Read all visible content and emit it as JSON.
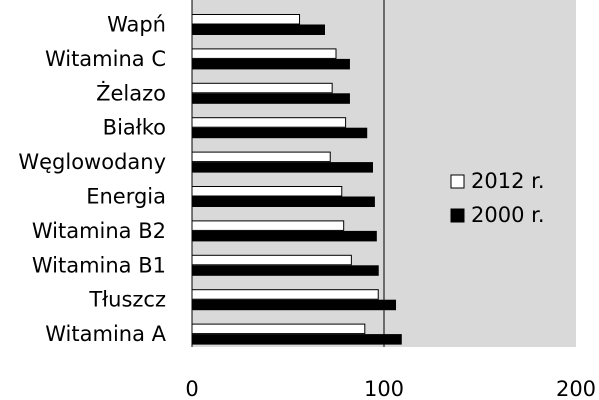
{
  "chart_data": {
    "type": "bar",
    "orientation": "horizontal",
    "categories": [
      "Wapń",
      "Witamina C",
      "Żelazo",
      "Białko",
      "Węglowodany",
      "Energia",
      "Witamina B2",
      "Witamina B1",
      "Tłuszcz",
      "Witamina A"
    ],
    "series": [
      {
        "name": "2012 r.",
        "color": "#ffffff",
        "values": [
          56,
          75,
          73,
          80,
          72,
          78,
          79,
          83,
          97,
          90
        ]
      },
      {
        "name": "2000 r.",
        "color": "#000000",
        "values": [
          69,
          82,
          82,
          91,
          94,
          95,
          96,
          97,
          106,
          109
        ]
      }
    ],
    "xlim": [
      0,
      200
    ],
    "xticks": [
      "0",
      "100",
      "200"
    ],
    "reference_line": 100,
    "grid": false,
    "plot_background": "#d9d9d9",
    "legend_position": "right"
  }
}
